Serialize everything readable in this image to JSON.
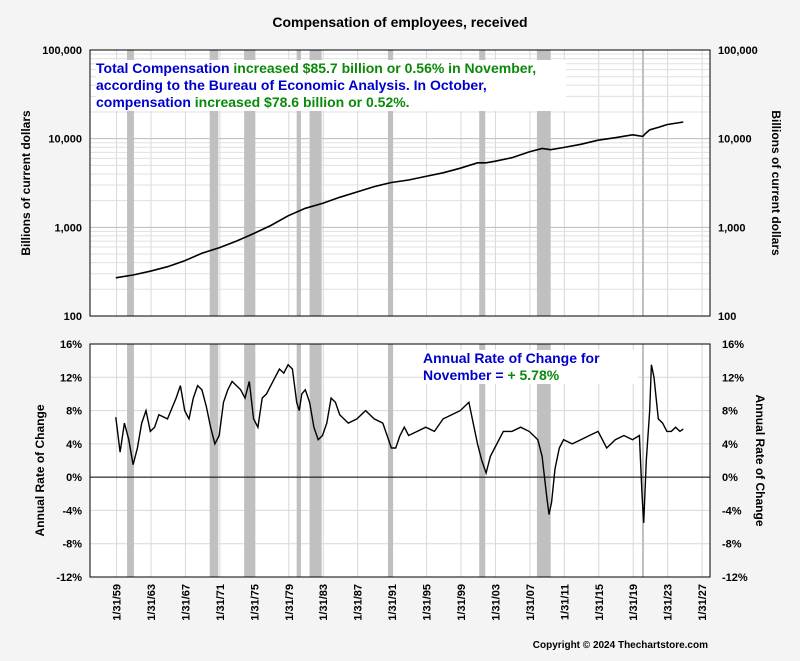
{
  "chart": {
    "title": "Compensation of employees, received",
    "copyright": "Copyright © 2024 Thechartstore.com"
  },
  "colors": {
    "accent_blue": "#0000cc",
    "accent_green": "#0a8a0a",
    "recession_shade": "#c0c0c0",
    "line": "#000000"
  },
  "annotations": {
    "top": {
      "l1a": "Total Compensation ",
      "l1b": "increased $85.7 billion or 0.56% in November,",
      "l2": "according to the Bureau of Economic Analysis.  In October,",
      "l3a": "compensation ",
      "l3b": "increased $78.6 billion or 0.52%."
    },
    "bottom": {
      "l1": "Annual Rate of Change for",
      "l2a": "November = ",
      "l2b": "+ 5.78%"
    }
  },
  "chart_data": [
    {
      "type": "line",
      "title": "Compensation of employees, received",
      "ylabel": "Billions of current dollars",
      "yscale": "log",
      "ylim": [
        100,
        100000
      ],
      "yticks": [
        "100",
        "1,000",
        "10,000",
        "100,000"
      ],
      "xlim": [
        1956.0,
        2028.0
      ],
      "xticks": [
        "1/31/59",
        "1/31/63",
        "1/31/67",
        "1/31/71",
        "1/31/75",
        "1/31/79",
        "1/31/83",
        "1/31/87",
        "1/31/91",
        "1/31/95",
        "1/31/99",
        "1/31/03",
        "1/31/07",
        "1/31/11",
        "1/31/15",
        "1/31/19",
        "1/31/23",
        "1/31/27"
      ],
      "recessions": [
        [
          1960.3,
          1961.1
        ],
        [
          1969.9,
          1970.9
        ],
        [
          1973.9,
          1975.2
        ],
        [
          1980.0,
          1980.5
        ],
        [
          1981.5,
          1982.9
        ],
        [
          1990.6,
          1991.2
        ],
        [
          2001.2,
          2001.9
        ],
        [
          2007.9,
          2009.5
        ],
        [
          2020.1,
          2020.3
        ]
      ],
      "series": [
        {
          "x": [
            1959.0,
            1961.0,
            1963.0,
            1965.0,
            1967.0,
            1969.0,
            1971.0,
            1973.0,
            1975.0,
            1977.0,
            1979.0,
            1981.0,
            1983.0,
            1985.0,
            1987.0,
            1989.0,
            1991.0,
            1993.0,
            1995.0,
            1997.0,
            1999.0,
            2001.0,
            2002.0,
            2003.0,
            2005.0,
            2007.0,
            2008.5,
            2009.5,
            2011.0,
            2013.0,
            2015.0,
            2017.0,
            2019.0,
            2020.2,
            2020.5,
            2021.0,
            2022.0,
            2023.0,
            2024.9
          ],
          "y": [
            270,
            290,
            320,
            360,
            420,
            510,
            590,
            700,
            850,
            1050,
            1350,
            1640,
            1860,
            2180,
            2500,
            2880,
            3200,
            3420,
            3750,
            4120,
            4650,
            5340,
            5350,
            5550,
            6100,
            7100,
            7750,
            7500,
            7950,
            8650,
            9600,
            10250,
            11050,
            10600,
            11400,
            12600,
            13400,
            14400,
            15400
          ]
        }
      ]
    },
    {
      "type": "line",
      "ylabel": "Annual Rate of Change",
      "ylim": [
        -12,
        16
      ],
      "yticks": [
        "-12%",
        "-8%",
        "-4%",
        "0%",
        "4%",
        "8%",
        "12%",
        "16%"
      ],
      "xlim": [
        1956.0,
        2028.0
      ],
      "series": [
        {
          "x": [
            1959.0,
            1959.5,
            1960.0,
            1960.5,
            1961.0,
            1961.5,
            1962.0,
            1962.5,
            1963.0,
            1963.5,
            1964.0,
            1965.0,
            1966.0,
            1966.5,
            1967.0,
            1967.5,
            1968.0,
            1968.5,
            1969.0,
            1969.5,
            1970.0,
            1970.5,
            1971.0,
            1971.5,
            1972.0,
            1972.5,
            1973.0,
            1973.5,
            1974.0,
            1974.5,
            1975.0,
            1975.5,
            1976.0,
            1976.5,
            1977.0,
            1977.5,
            1978.0,
            1978.5,
            1979.0,
            1979.5,
            1980.0,
            1980.3,
            1980.6,
            1981.0,
            1981.5,
            1982.0,
            1982.5,
            1983.0,
            1983.5,
            1984.0,
            1984.5,
            1985.0,
            1986.0,
            1987.0,
            1988.0,
            1989.0,
            1990.0,
            1990.5,
            1991.0,
            1991.5,
            1992.0,
            1992.5,
            1993.0,
            1994.0,
            1995.0,
            1996.0,
            1997.0,
            1998.0,
            1999.0,
            2000.0,
            2000.5,
            2001.0,
            2001.5,
            2002.0,
            2002.5,
            2003.0,
            2004.0,
            2005.0,
            2006.0,
            2007.0,
            2007.5,
            2008.0,
            2008.5,
            2009.0,
            2009.3,
            2009.6,
            2010.0,
            2010.5,
            2011.0,
            2012.0,
            2013.0,
            2014.0,
            2015.0,
            2016.0,
            2017.0,
            2018.0,
            2019.0,
            2019.8,
            2020.1,
            2020.3,
            2020.6,
            2021.0,
            2021.2,
            2021.5,
            2022.0,
            2022.5,
            2023.0,
            2023.5,
            2024.0,
            2024.5,
            2024.9
          ],
          "y": [
            7.2,
            3.0,
            6.5,
            4.5,
            1.5,
            3.5,
            6.5,
            8.0,
            5.5,
            6.0,
            7.5,
            7.0,
            9.5,
            11.0,
            8.0,
            7.0,
            9.5,
            11.0,
            10.5,
            8.5,
            6.0,
            4.0,
            5.0,
            9.0,
            10.5,
            11.5,
            11.0,
            10.5,
            9.5,
            11.5,
            7.0,
            6.0,
            9.5,
            10.0,
            11.0,
            12.0,
            13.0,
            12.5,
            13.5,
            13.0,
            9.0,
            8.0,
            10.0,
            10.5,
            9.0,
            6.0,
            4.5,
            5.0,
            6.5,
            9.5,
            9.0,
            7.5,
            6.5,
            7.0,
            8.0,
            7.0,
            6.5,
            5.0,
            3.5,
            3.5,
            5.0,
            6.0,
            5.0,
            5.5,
            6.0,
            5.5,
            7.0,
            7.5,
            8.0,
            9.0,
            6.5,
            4.0,
            2.0,
            0.5,
            2.5,
            3.5,
            5.5,
            5.5,
            6.0,
            5.5,
            5.0,
            4.5,
            2.5,
            -2.0,
            -4.5,
            -3.0,
            1.0,
            3.5,
            4.5,
            4.0,
            4.5,
            5.0,
            5.5,
            3.5,
            4.5,
            5.0,
            4.5,
            5.0,
            -2.0,
            -5.5,
            2.0,
            8.0,
            13.5,
            12.0,
            7.0,
            6.5,
            5.5,
            5.5,
            6.0,
            5.5,
            5.78
          ]
        }
      ]
    }
  ]
}
